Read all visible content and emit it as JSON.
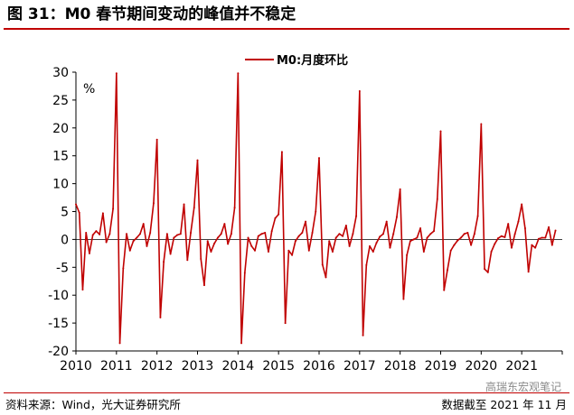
{
  "header": {
    "title": "图 31：M0 春节期间变动的峰值并不稳定"
  },
  "footer": {
    "source": "资料来源：Wind，光大证券研究所",
    "date": "数据截至 2021 年 11 月",
    "watermark": "高瑞东宏观笔记"
  },
  "colors": {
    "series": "#c00000",
    "accent": "#c00000",
    "axis": "#000000"
  },
  "chart_data": {
    "type": "line",
    "title": "",
    "xlabel": "",
    "ylabel": "%",
    "ylim": [
      -20,
      30
    ],
    "yticks": [
      -20,
      -15,
      -10,
      -5,
      0,
      5,
      10,
      15,
      20,
      25,
      30
    ],
    "xlim": [
      2010.0,
      2022.0
    ],
    "xticks": [
      "2010",
      "2011",
      "2012",
      "2013",
      "2014",
      "2015",
      "2016",
      "2017",
      "2018",
      "2019",
      "2020",
      "2021"
    ],
    "grid": false,
    "legend": "top-center",
    "series": [
      {
        "name": "M0:月度环比",
        "color": "#c00000",
        "x": [
          "2010-01",
          "2010-02",
          "2010-03",
          "2010-04",
          "2010-05",
          "2010-06",
          "2010-07",
          "2010-08",
          "2010-09",
          "2010-10",
          "2010-11",
          "2010-12",
          "2011-01",
          "2011-02",
          "2011-03",
          "2011-04",
          "2011-05",
          "2011-06",
          "2011-07",
          "2011-08",
          "2011-09",
          "2011-10",
          "2011-11",
          "2011-12",
          "2012-01",
          "2012-02",
          "2012-03",
          "2012-04",
          "2012-05",
          "2012-06",
          "2012-07",
          "2012-08",
          "2012-09",
          "2012-10",
          "2012-11",
          "2012-12",
          "2013-01",
          "2013-02",
          "2013-03",
          "2013-04",
          "2013-05",
          "2013-06",
          "2013-07",
          "2013-08",
          "2013-09",
          "2013-10",
          "2013-11",
          "2013-12",
          "2014-01",
          "2014-02",
          "2014-03",
          "2014-04",
          "2014-05",
          "2014-06",
          "2014-07",
          "2014-08",
          "2014-09",
          "2014-10",
          "2014-11",
          "2014-12",
          "2015-01",
          "2015-02",
          "2015-03",
          "2015-04",
          "2015-05",
          "2015-06",
          "2015-07",
          "2015-08",
          "2015-09",
          "2015-10",
          "2015-11",
          "2015-12",
          "2016-01",
          "2016-02",
          "2016-03",
          "2016-04",
          "2016-05",
          "2016-06",
          "2016-07",
          "2016-08",
          "2016-09",
          "2016-10",
          "2016-11",
          "2016-12",
          "2017-01",
          "2017-02",
          "2017-03",
          "2017-04",
          "2017-05",
          "2017-06",
          "2017-07",
          "2017-08",
          "2017-09",
          "2017-10",
          "2017-11",
          "2017-12",
          "2018-01",
          "2018-02",
          "2018-03",
          "2018-04",
          "2018-05",
          "2018-06",
          "2018-07",
          "2018-08",
          "2018-09",
          "2018-10",
          "2018-11",
          "2018-12",
          "2019-01",
          "2019-02",
          "2019-03",
          "2019-04",
          "2019-05",
          "2019-06",
          "2019-07",
          "2019-08",
          "2019-09",
          "2019-10",
          "2019-11",
          "2019-12",
          "2020-01",
          "2020-02",
          "2020-03",
          "2020-04",
          "2020-05",
          "2020-06",
          "2020-07",
          "2020-08",
          "2020-09",
          "2020-10",
          "2020-11",
          "2020-12",
          "2021-01",
          "2021-02",
          "2021-03",
          "2021-04",
          "2021-05",
          "2021-06",
          "2021-07",
          "2021-08",
          "2021-09",
          "2021-10",
          "2021-11"
        ],
        "values": [
          6.3,
          4.8,
          -9.0,
          1.2,
          -2.5,
          0.8,
          1.5,
          0.9,
          4.7,
          -0.5,
          1.0,
          5.5,
          29.8,
          -18.6,
          -5.2,
          1.0,
          -2.0,
          -0.3,
          0.3,
          1.0,
          2.8,
          -1.2,
          1.2,
          6.5,
          17.9,
          -14.0,
          -4.0,
          1.0,
          -2.6,
          0.3,
          0.8,
          1.0,
          6.3,
          -3.7,
          1.2,
          5.7,
          14.2,
          -3.5,
          -8.2,
          -0.3,
          -2.2,
          -0.7,
          0.3,
          1.0,
          2.8,
          -0.8,
          1.0,
          5.7,
          29.8,
          -18.6,
          -6.0,
          0.3,
          -1.2,
          -2.0,
          0.6,
          1.0,
          1.2,
          -2.2,
          1.5,
          3.8,
          4.5,
          15.7,
          -15.0,
          -2.0,
          -2.8,
          -0.3,
          0.6,
          1.2,
          3.2,
          -2.0,
          1.2,
          5.0,
          14.6,
          -4.5,
          -6.8,
          -0.3,
          -2.2,
          0.3,
          1.0,
          0.6,
          2.5,
          -1.2,
          1.0,
          4.2,
          26.6,
          -17.2,
          -4.6,
          -1.2,
          -2.2,
          -0.6,
          0.5,
          1.0,
          3.2,
          -1.5,
          1.0,
          4.0,
          9.0,
          -10.7,
          -2.8,
          -0.3,
          0.0,
          0.3,
          2.0,
          -2.2,
          0.3,
          1.0,
          1.5,
          7.2,
          19.4,
          -9.1,
          -5.5,
          -2.0,
          -1.0,
          -0.2,
          0.3,
          1.0,
          1.2,
          -1.0,
          1.0,
          4.2,
          20.7,
          -5.3,
          -5.9,
          -2.2,
          -0.8,
          0.2,
          0.6,
          0.4,
          2.8,
          -1.5,
          1.0,
          3.2,
          6.3,
          2.0,
          -5.8,
          -1.0,
          -1.5,
          0.1,
          0.3,
          0.3,
          2.2,
          -1.0,
          1.6
        ]
      }
    ]
  }
}
